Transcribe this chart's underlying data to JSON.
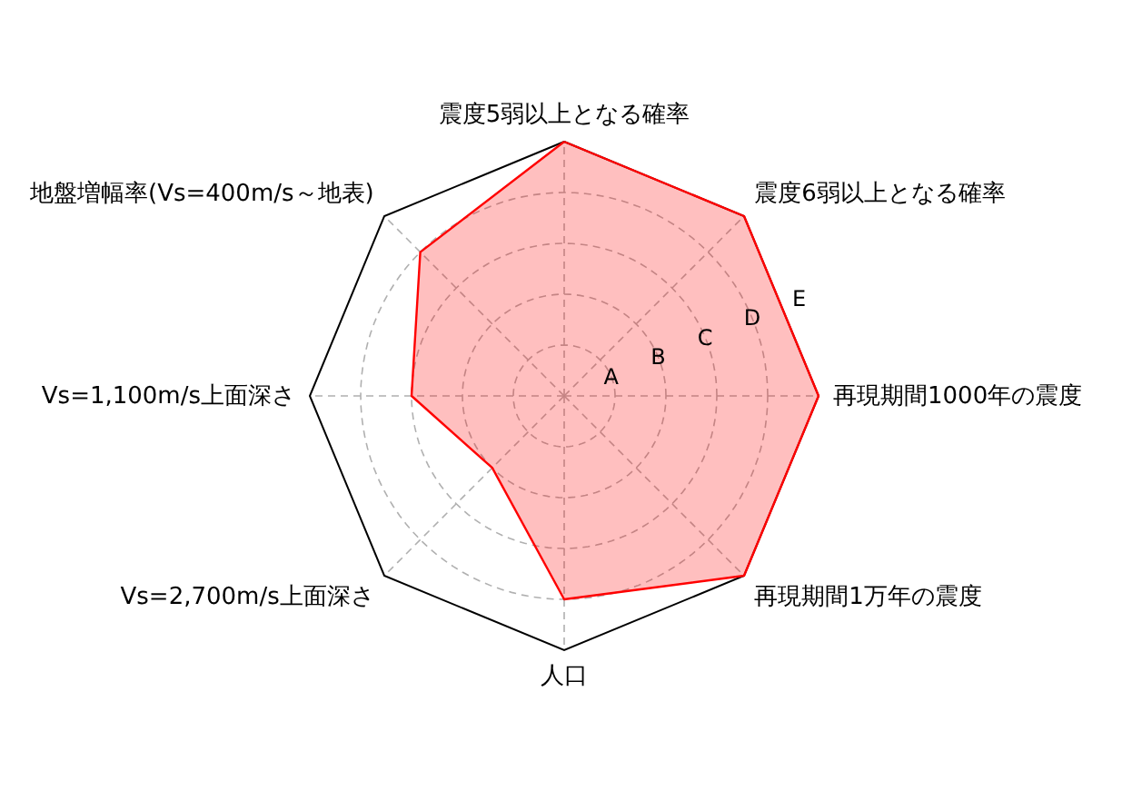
{
  "chart_data": {
    "type": "radar",
    "categories": [
      "震度5弱以上となる確率",
      "震度6弱以上となる確率",
      "再現期間1000年の震度",
      "再現期間1万年の震度",
      "人口",
      "Vs=2,700m/s上面深さ",
      "Vs=1,100m/s上面深さ",
      "地盤増幅率(Vs=400m/s～地表)"
    ],
    "series": [
      {
        "color": "#ff0000",
        "values": [
          5,
          5,
          5,
          5,
          4,
          2,
          3,
          4
        ]
      }
    ],
    "ylim": [
      0,
      5
    ],
    "yticks": [
      {
        "value": 1,
        "label": "A"
      },
      {
        "value": 2,
        "label": "B"
      },
      {
        "value": 3,
        "label": "C"
      },
      {
        "value": 4,
        "label": "D"
      },
      {
        "value": 5,
        "label": "E"
      }
    ],
    "grid": true
  }
}
